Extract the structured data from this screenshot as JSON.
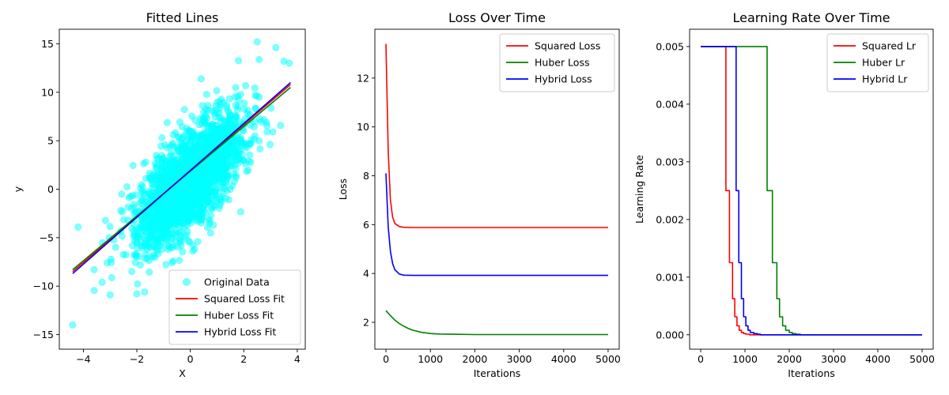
{
  "chart_data": [
    {
      "type": "scatter",
      "title": "Fitted Lines",
      "xlabel": "X",
      "ylabel": "y",
      "xlim": [
        -4.9,
        4.3
      ],
      "ylim": [
        -16.5,
        16.5
      ],
      "xticks": [
        -4,
        -2,
        0,
        2,
        4
      ],
      "yticks": [
        -15,
        -10,
        -5,
        0,
        5,
        10,
        15
      ],
      "scatter": {
        "name": "Original Data",
        "color": "#00ffff",
        "cloud": {
          "n": 2200,
          "x_mean": 0.0,
          "x_sd": 1.0,
          "slope": 2.3,
          "intercept": 1.0,
          "noise_sd": 2.4,
          "seed": 7
        },
        "outliers": [
          [
            -4.4,
            -14.0
          ],
          [
            2.5,
            15.2
          ],
          [
            -4.2,
            -3.9
          ],
          [
            3.7,
            13.0
          ],
          [
            3.2,
            14.6
          ],
          [
            -3.6,
            -8.3
          ],
          [
            -3.0,
            -10.9
          ],
          [
            -2.0,
            -10.8
          ],
          [
            3.5,
            13.2
          ],
          [
            -3.3,
            -9.6
          ]
        ]
      },
      "series": [
        {
          "name": "Squared Loss Fit",
          "color": "#ff0000",
          "x": [
            -4.4,
            3.75
          ],
          "y": [
            -8.5,
            10.8
          ]
        },
        {
          "name": "Huber Loss Fit",
          "color": "#008000",
          "x": [
            -4.4,
            3.75
          ],
          "y": [
            -8.3,
            10.5
          ]
        },
        {
          "name": "Hybrid Loss Fit",
          "color": "#0000ff",
          "x": [
            -4.4,
            3.75
          ],
          "y": [
            -8.7,
            11.0
          ]
        }
      ],
      "legend": "lower-right"
    },
    {
      "type": "line",
      "title": "Loss Over Time",
      "xlabel": "Iterations",
      "ylabel": "Loss",
      "xlim": [
        -250,
        5250
      ],
      "ylim": [
        0.9,
        14.0
      ],
      "xticks": [
        0,
        1000,
        2000,
        3000,
        4000,
        5000
      ],
      "yticks": [
        2,
        4,
        6,
        8,
        10,
        12
      ],
      "series": [
        {
          "name": "Squared Loss",
          "color": "#ff0000",
          "x": [
            0,
            50,
            100,
            150,
            200,
            300,
            400,
            600,
            1000,
            2000,
            3000,
            4000,
            5000
          ],
          "y": [
            13.4,
            9.0,
            7.0,
            6.3,
            6.05,
            5.92,
            5.89,
            5.88,
            5.88,
            5.88,
            5.88,
            5.88,
            5.88
          ]
        },
        {
          "name": "Huber Loss",
          "color": "#008000",
          "x": [
            0,
            100,
            200,
            300,
            400,
            500,
            600,
            800,
            1000,
            1200,
            1500,
            2000,
            3000,
            4000,
            5000
          ],
          "y": [
            2.48,
            2.27,
            2.09,
            1.95,
            1.84,
            1.75,
            1.68,
            1.59,
            1.54,
            1.52,
            1.51,
            1.5,
            1.5,
            1.5,
            1.5
          ]
        },
        {
          "name": "Hybrid Loss",
          "color": "#0000ff",
          "x": [
            0,
            50,
            100,
            150,
            200,
            300,
            400,
            600,
            1000,
            2000,
            3000,
            4000,
            5000
          ],
          "y": [
            8.1,
            5.9,
            4.9,
            4.4,
            4.15,
            3.98,
            3.93,
            3.92,
            3.92,
            3.92,
            3.92,
            3.92,
            3.92
          ]
        }
      ],
      "legend": "upper-right"
    },
    {
      "type": "line",
      "title": "Learning Rate Over Time",
      "xlabel": "Iterations",
      "ylabel": "Learning Rate",
      "xlim": [
        -250,
        5250
      ],
      "ylim": [
        -0.00025,
        0.0053
      ],
      "xticks": [
        0,
        1000,
        2000,
        3000,
        4000,
        5000
      ],
      "yticks": [
        0.0,
        0.001,
        0.002,
        0.003,
        0.004,
        0.005
      ],
      "ytick_labels": [
        "0.000",
        "0.001",
        "0.002",
        "0.003",
        "0.004",
        "0.005"
      ],
      "step": true,
      "series": [
        {
          "name": "Squared Lr",
          "color": "#ff0000",
          "x": [
            0,
            570,
            650,
            720,
            770,
            820,
            870,
            920,
            970,
            1020,
            1100,
            5000
          ],
          "y": [
            0.005,
            0.0025,
            0.00125,
            0.000625,
            0.0003125,
            0.00015625,
            7.8e-05,
            3.9e-05,
            2e-05,
            1e-05,
            0.0,
            0.0
          ]
        },
        {
          "name": "Huber Lr",
          "color": "#008000",
          "x": [
            0,
            1500,
            1620,
            1720,
            1780,
            1850,
            1920,
            2000,
            2070,
            2150,
            2250,
            5000
          ],
          "y": [
            0.005,
            0.0025,
            0.00125,
            0.000625,
            0.0003125,
            0.00015625,
            7.8e-05,
            3.9e-05,
            2e-05,
            1e-05,
            0.0,
            0.0
          ]
        },
        {
          "name": "Hybrid Lr",
          "color": "#0000ff",
          "x": [
            0,
            800,
            860,
            920,
            970,
            1020,
            1070,
            1120,
            1200,
            1280,
            1350,
            5000
          ],
          "y": [
            0.005,
            0.0025,
            0.00125,
            0.000625,
            0.0003125,
            0.00015625,
            7.8e-05,
            3.9e-05,
            2e-05,
            1e-05,
            0.0,
            0.0
          ]
        }
      ],
      "legend": "upper-right"
    }
  ]
}
